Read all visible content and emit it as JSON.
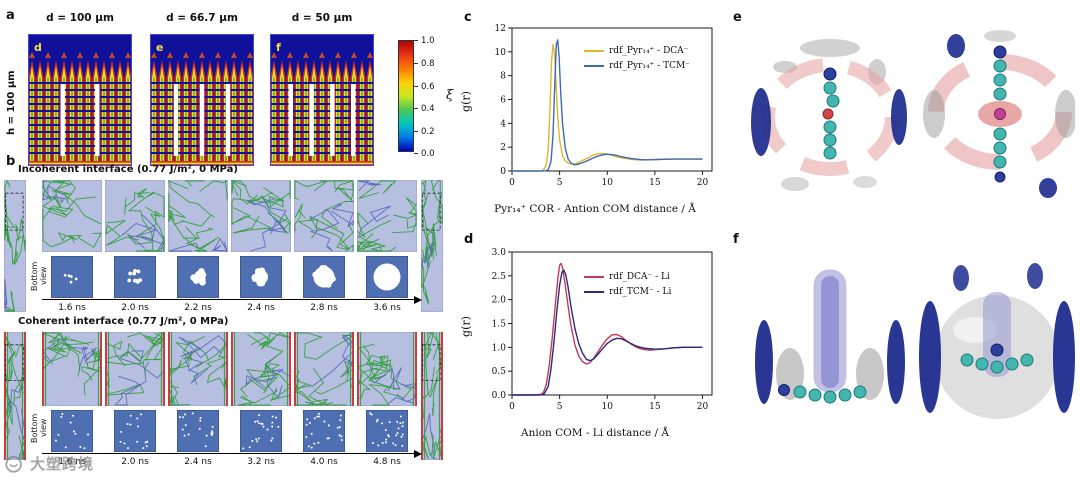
{
  "panel_a": {
    "label": "a",
    "col_headers": [
      "d = 100 μm",
      "d = 66.7 μm",
      "d = 50 μm"
    ],
    "row_label": "h = 100 μm",
    "sub_labels": [
      "d",
      "e",
      "f"
    ],
    "colorbar": {
      "label": "ξ",
      "ticks": [
        "1.0",
        "0.8",
        "0.6",
        "0.4",
        "0.2",
        "0.0"
      ],
      "colors_top_to_bottom": [
        "#b00000",
        "#ff7a00",
        "#ffd000",
        "#50c850",
        "#00c8c0",
        "#0000b8"
      ]
    }
  },
  "panel_b": {
    "label": "b",
    "incoherent": {
      "title": "Incoherent interface (0.77 J/m², 0 MPa)",
      "bottom_view_label": "Bottom view",
      "times": [
        "1.6 ns",
        "2.0 ns",
        "2.2 ns",
        "2.4 ns",
        "2.8 ns",
        "3.6 ns"
      ]
    },
    "coherent": {
      "title": "Coherent interface (0.77 J/m², 0 MPa)",
      "bottom_view_label": "Bottom view",
      "times": [
        "1.6 ns",
        "2.0 ns",
        "2.4 ns",
        "3.2 ns",
        "4.0 ns",
        "4.8 ns"
      ]
    }
  },
  "panel_c": {
    "label": "c"
  },
  "panel_d": {
    "label": "d"
  },
  "panel_e": {
    "label": "e"
  },
  "panel_f": {
    "label": "f"
  },
  "watermark": {
    "text": "大塑跨境"
  },
  "chart_data": [
    {
      "type": "line",
      "title": "",
      "xlabel": "Pyr₁₄⁺ COR - Antion COM distance / Å",
      "ylabel": "g(r)",
      "xlim": [
        0,
        21
      ],
      "ylim": [
        0,
        12
      ],
      "xticks": [
        0,
        5,
        10,
        15,
        20
      ],
      "xtick_labels": [
        "0",
        "5",
        "10",
        "15",
        "20"
      ],
      "yticks": [
        0,
        2,
        4,
        6,
        8,
        10,
        12
      ],
      "ytick_labels": [
        "0",
        "2",
        "4",
        "6",
        "8",
        "10",
        "12"
      ],
      "grid": false,
      "legend_position": "top-right",
      "series": [
        {
          "name": "rdf_Pyr₁₄⁺ - DCA⁻",
          "color": "#e3b52f",
          "points": [
            [
              0,
              0
            ],
            [
              0.5,
              0
            ],
            [
              1,
              0
            ],
            [
              1.5,
              0
            ],
            [
              2,
              0
            ],
            [
              2.5,
              0
            ],
            [
              3,
              0.02
            ],
            [
              3.3,
              0.08
            ],
            [
              3.6,
              0.5
            ],
            [
              3.8,
              1.8
            ],
            [
              4.0,
              5.5
            ],
            [
              4.15,
              9.2
            ],
            [
              4.3,
              10.6
            ],
            [
              4.45,
              10.0
            ],
            [
              4.6,
              7.8
            ],
            [
              4.8,
              4.6
            ],
            [
              5.0,
              2.6
            ],
            [
              5.3,
              1.3
            ],
            [
              5.6,
              0.85
            ],
            [
              6.0,
              0.62
            ],
            [
              6.5,
              0.58
            ],
            [
              7.0,
              0.72
            ],
            [
              7.5,
              0.92
            ],
            [
              8.0,
              1.12
            ],
            [
              8.5,
              1.32
            ],
            [
              9.0,
              1.45
            ],
            [
              9.5,
              1.48
            ],
            [
              10.0,
              1.42
            ],
            [
              10.5,
              1.32
            ],
            [
              11.0,
              1.2
            ],
            [
              11.5,
              1.1
            ],
            [
              12.0,
              1.04
            ],
            [
              12.5,
              0.98
            ],
            [
              13.0,
              0.94
            ],
            [
              13.5,
              0.92
            ],
            [
              14.0,
              0.93
            ],
            [
              14.5,
              0.96
            ],
            [
              15.0,
              0.98
            ],
            [
              16.0,
              1.0
            ],
            [
              17.0,
              1.0
            ],
            [
              18.0,
              1.0
            ],
            [
              19.0,
              1.0
            ],
            [
              20.0,
              1.0
            ]
          ]
        },
        {
          "name": "rdf_Pyr₁₄⁺ - TCM⁻",
          "color": "#3a6cb3",
          "points": [
            [
              0,
              0
            ],
            [
              1,
              0
            ],
            [
              2,
              0
            ],
            [
              3,
              0
            ],
            [
              3.5,
              0.02
            ],
            [
              3.8,
              0.1
            ],
            [
              4.1,
              0.8
            ],
            [
              4.3,
              3.0
            ],
            [
              4.5,
              7.5
            ],
            [
              4.65,
              10.6
            ],
            [
              4.8,
              11.0
            ],
            [
              4.95,
              9.6
            ],
            [
              5.1,
              6.8
            ],
            [
              5.3,
              4.0
            ],
            [
              5.6,
              1.9
            ],
            [
              5.9,
              1.0
            ],
            [
              6.2,
              0.66
            ],
            [
              6.6,
              0.52
            ],
            [
              7.0,
              0.58
            ],
            [
              7.5,
              0.72
            ],
            [
              8.0,
              0.9
            ],
            [
              8.5,
              1.08
            ],
            [
              9.0,
              1.24
            ],
            [
              9.5,
              1.36
            ],
            [
              10.0,
              1.4
            ],
            [
              10.5,
              1.38
            ],
            [
              11.0,
              1.3
            ],
            [
              11.5,
              1.2
            ],
            [
              12.0,
              1.12
            ],
            [
              12.5,
              1.05
            ],
            [
              13.0,
              1.0
            ],
            [
              13.5,
              0.96
            ],
            [
              14.0,
              0.94
            ],
            [
              15.0,
              0.95
            ],
            [
              16.0,
              0.98
            ],
            [
              17.0,
              1.0
            ],
            [
              18.0,
              1.0
            ],
            [
              19.0,
              1.0
            ],
            [
              20.0,
              1.0
            ]
          ]
        }
      ]
    },
    {
      "type": "line",
      "title": "",
      "xlabel": "Anion COM - Li distance / Å",
      "ylabel": "g(r)",
      "xlim": [
        0,
        21
      ],
      "ylim": [
        0,
        3
      ],
      "xticks": [
        0,
        5,
        10,
        15,
        20
      ],
      "xtick_labels": [
        "0",
        "5",
        "10",
        "15",
        "20"
      ],
      "yticks": [
        0,
        0.5,
        1,
        1.5,
        2,
        2.5,
        3
      ],
      "ytick_labels": [
        "0.0",
        "0.5",
        "1.0",
        "1.5",
        "2.0",
        "2.5",
        "3.0"
      ],
      "grid": false,
      "legend_position": "top-right",
      "series": [
        {
          "name": "rdf_DCA⁻ - Li",
          "color": "#c23a55",
          "points": [
            [
              0,
              0
            ],
            [
              1,
              0
            ],
            [
              2,
              0
            ],
            [
              3,
              0.01
            ],
            [
              3.3,
              0.05
            ],
            [
              3.6,
              0.22
            ],
            [
              3.9,
              0.6
            ],
            [
              4.2,
              1.15
            ],
            [
              4.5,
              1.8
            ],
            [
              4.8,
              2.42
            ],
            [
              5.0,
              2.72
            ],
            [
              5.15,
              2.76
            ],
            [
              5.3,
              2.68
            ],
            [
              5.6,
              2.3
            ],
            [
              5.9,
              1.85
            ],
            [
              6.2,
              1.45
            ],
            [
              6.6,
              1.05
            ],
            [
              7.0,
              0.82
            ],
            [
              7.4,
              0.7
            ],
            [
              7.8,
              0.65
            ],
            [
              8.2,
              0.68
            ],
            [
              8.6,
              0.78
            ],
            [
              9.0,
              0.9
            ],
            [
              9.5,
              1.05
            ],
            [
              10.0,
              1.18
            ],
            [
              10.5,
              1.26
            ],
            [
              11.0,
              1.27
            ],
            [
              11.5,
              1.22
            ],
            [
              12.0,
              1.14
            ],
            [
              12.5,
              1.07
            ],
            [
              13.0,
              1.01
            ],
            [
              13.5,
              0.97
            ],
            [
              14.0,
              0.95
            ],
            [
              14.5,
              0.94
            ],
            [
              15.0,
              0.95
            ],
            [
              16.0,
              0.97
            ],
            [
              17.0,
              0.99
            ],
            [
              18.0,
              1.0
            ],
            [
              19.0,
              1.0
            ],
            [
              20.0,
              1.0
            ]
          ]
        },
        {
          "name": "rdf_TCM⁻ - Li",
          "color": "#2a2a80",
          "points": [
            [
              0,
              0
            ],
            [
              1,
              0
            ],
            [
              2,
              0
            ],
            [
              3,
              0
            ],
            [
              3.4,
              0.03
            ],
            [
              3.8,
              0.18
            ],
            [
              4.1,
              0.55
            ],
            [
              4.4,
              1.1
            ],
            [
              4.7,
              1.75
            ],
            [
              5.0,
              2.3
            ],
            [
              5.25,
              2.58
            ],
            [
              5.45,
              2.62
            ],
            [
              5.65,
              2.52
            ],
            [
              5.9,
              2.25
            ],
            [
              6.2,
              1.85
            ],
            [
              6.6,
              1.4
            ],
            [
              7.0,
              1.08
            ],
            [
              7.4,
              0.88
            ],
            [
              7.8,
              0.75
            ],
            [
              8.2,
              0.72
            ],
            [
              8.6,
              0.76
            ],
            [
              9.0,
              0.85
            ],
            [
              9.5,
              0.97
            ],
            [
              10.0,
              1.08
            ],
            [
              10.5,
              1.15
            ],
            [
              11.0,
              1.19
            ],
            [
              11.5,
              1.18
            ],
            [
              12.0,
              1.13
            ],
            [
              12.5,
              1.08
            ],
            [
              13.0,
              1.03
            ],
            [
              13.5,
              1.0
            ],
            [
              14.0,
              0.98
            ],
            [
              15.0,
              0.96
            ],
            [
              16.0,
              0.97
            ],
            [
              17.0,
              0.99
            ],
            [
              18.0,
              1.0
            ],
            [
              19.0,
              1.0
            ],
            [
              20.0,
              1.0
            ]
          ]
        }
      ]
    }
  ]
}
